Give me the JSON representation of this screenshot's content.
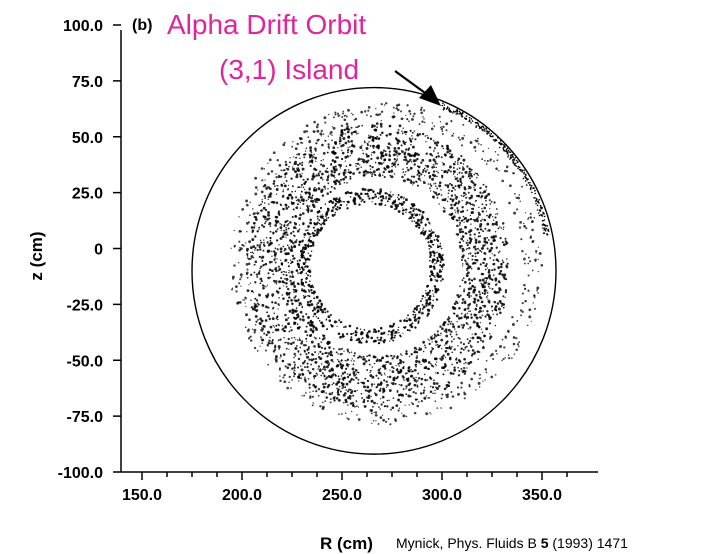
{
  "chart_data": {
    "type": "scatter",
    "panel_label": "(b)",
    "title_lines": [
      "Alpha Drift Orbit",
      "(3,1) Island"
    ],
    "xlabel": "R (cm)",
    "ylabel": "z (cm)",
    "xlim": [
      150,
      360
    ],
    "ylim": [
      -100,
      100
    ],
    "xticks": [
      "150.0",
      "200.0",
      "250.0",
      "300.0",
      "350.0"
    ],
    "xtick_values": [
      150,
      200,
      250,
      300,
      350
    ],
    "yticks": [
      "100.0",
      "75.0",
      "50.0",
      "25.0",
      "0",
      "-25.0",
      "-50.0",
      "-75.0",
      "-100.0"
    ],
    "ytick_values": [
      100,
      75,
      50,
      25,
      0,
      -25,
      -50,
      -75,
      -100
    ],
    "series": [
      {
        "kind": "boundary",
        "center_R": 266,
        "center_z": -10,
        "radius_R": 91,
        "radius_z": 82,
        "color": "#000000"
      }
    ],
    "orbit_band_outer": {
      "center_R": 272,
      "center_z": -7,
      "inner_R": 68,
      "outer_R": 78,
      "inner_z": 64,
      "outer_z": 72
    },
    "orbit_band_main": {
      "center_R": 268,
      "center_z": -8,
      "inner_R": 42,
      "outer_R": 66,
      "inner_z": 40,
      "outer_z": 64
    },
    "orbit_band_inner": {
      "center_R": 264,
      "center_z": -8,
      "inner_R": 30,
      "outer_R": 37,
      "inner_z": 28,
      "outer_z": 35
    },
    "island_arc": {
      "from_deg": 10,
      "to_deg": 70
    },
    "citation": {
      "before": "Mynick, Phys. Fluids B ",
      "bold": "5",
      "after": " (1993) 1471"
    }
  }
}
